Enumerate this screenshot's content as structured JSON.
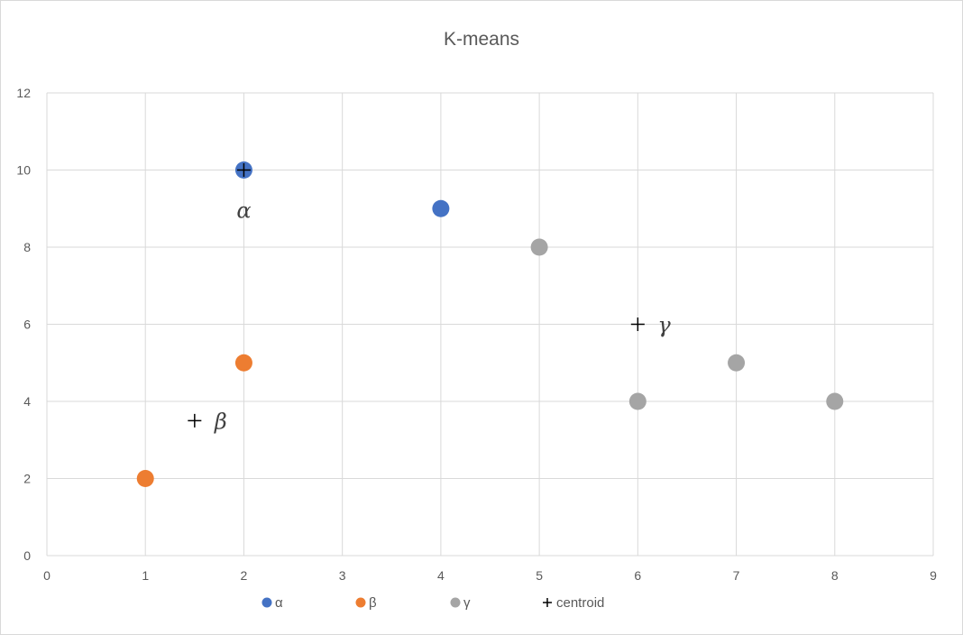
{
  "chart_data": {
    "type": "scatter",
    "title": "K-means",
    "xlabel": "",
    "ylabel": "",
    "xlim": [
      0,
      9
    ],
    "ylim": [
      0,
      12
    ],
    "x_ticks": [
      0,
      1,
      2,
      3,
      4,
      5,
      6,
      7,
      8,
      9
    ],
    "y_ticks": [
      0,
      2,
      4,
      6,
      8,
      10,
      12
    ],
    "grid": true,
    "legend_position": "bottom",
    "series": [
      {
        "name": "α",
        "marker": "circle",
        "color": "#4472C4",
        "points": [
          {
            "x": 2,
            "y": 10
          },
          {
            "x": 4,
            "y": 9
          }
        ]
      },
      {
        "name": "β",
        "marker": "circle",
        "color": "#ED7D31",
        "points": [
          {
            "x": 1,
            "y": 2
          },
          {
            "x": 2,
            "y": 5
          }
        ]
      },
      {
        "name": "γ",
        "marker": "circle",
        "color": "#A5A5A5",
        "points": [
          {
            "x": 5,
            "y": 8
          },
          {
            "x": 6,
            "y": 4
          },
          {
            "x": 7,
            "y": 5
          },
          {
            "x": 8,
            "y": 4
          }
        ]
      },
      {
        "name": "centroid",
        "marker": "plus",
        "color": "#000000",
        "points": [
          {
            "x": 2,
            "y": 10
          },
          {
            "x": 1.5,
            "y": 3.5
          },
          {
            "x": 6,
            "y": 6
          }
        ]
      }
    ],
    "annotations": [
      {
        "text": "α",
        "x": 2,
        "y": 9,
        "placement": "center"
      },
      {
        "text": "β",
        "x": 1.5,
        "y": 3.5,
        "placement": "right"
      },
      {
        "text": "γ",
        "x": 6,
        "y": 6,
        "placement": "right"
      }
    ]
  }
}
